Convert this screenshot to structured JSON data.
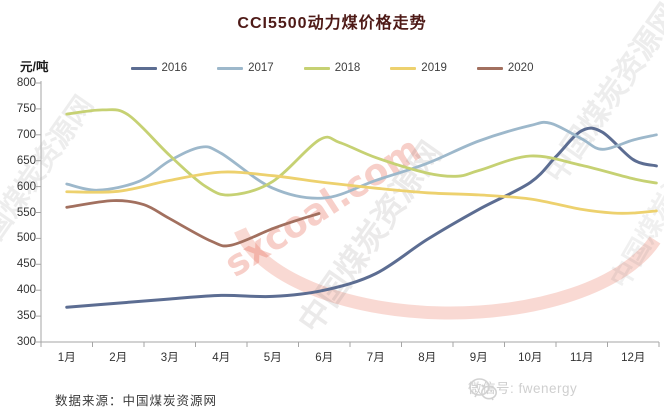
{
  "title": "CCI5500动力煤价格走势",
  "y_axis": {
    "unit": "元/吨",
    "ticks": [
      800,
      750,
      700,
      650,
      600,
      550,
      500,
      450,
      400,
      350,
      300
    ]
  },
  "x_axis": {
    "labels": [
      "1月",
      "2月",
      "3月",
      "4月",
      "5月",
      "6月",
      "7月",
      "8月",
      "9月",
      "10月",
      "11月",
      "12月"
    ]
  },
  "chart_data": {
    "type": "line",
    "title": "CCI5500动力煤价格走势",
    "ylabel": "元/吨",
    "ylim": [
      300,
      800
    ],
    "y_step": 50,
    "x_categories": [
      "1月",
      "2月",
      "3月",
      "4月",
      "5月",
      "6月",
      "7月",
      "8月",
      "9月",
      "10月",
      "11月",
      "12月"
    ],
    "grid": false,
    "legend_position": "top",
    "series": [
      {
        "name": "2016",
        "color": "#5c6d92",
        "width": 3,
        "points": [
          [
            1,
            367
          ],
          [
            2,
            375
          ],
          [
            3,
            383
          ],
          [
            4,
            390
          ],
          [
            5,
            388
          ],
          [
            6,
            400
          ],
          [
            7,
            432
          ],
          [
            8,
            498
          ],
          [
            9,
            556
          ],
          [
            10,
            608
          ],
          [
            10.5,
            658
          ],
          [
            11,
            708
          ],
          [
            11.4,
            705
          ],
          [
            12,
            652
          ],
          [
            12.45,
            640
          ]
        ]
      },
      {
        "name": "2017",
        "color": "#9db8cb",
        "width": 2.8,
        "points": [
          [
            1,
            605
          ],
          [
            1.6,
            593
          ],
          [
            2.4,
            610
          ],
          [
            3,
            650
          ],
          [
            3.6,
            676
          ],
          [
            4,
            664
          ],
          [
            5,
            597
          ],
          [
            6,
            578
          ],
          [
            7,
            612
          ],
          [
            8,
            645
          ],
          [
            9,
            688
          ],
          [
            10,
            718
          ],
          [
            10.4,
            722
          ],
          [
            11,
            692
          ],
          [
            11.4,
            672
          ],
          [
            12,
            690
          ],
          [
            12.45,
            700
          ]
        ]
      },
      {
        "name": "2018",
        "color": "#c6d173",
        "width": 2.8,
        "points": [
          [
            1,
            740
          ],
          [
            1.7,
            748
          ],
          [
            2.2,
            738
          ],
          [
            3,
            660
          ],
          [
            3.7,
            600
          ],
          [
            4.2,
            584
          ],
          [
            5,
            610
          ],
          [
            5.9,
            690
          ],
          [
            6.3,
            685
          ],
          [
            7,
            656
          ],
          [
            8,
            626
          ],
          [
            8.6,
            620
          ],
          [
            9,
            631
          ],
          [
            10,
            659
          ],
          [
            11,
            641
          ],
          [
            12,
            615
          ],
          [
            12.45,
            607
          ]
        ]
      },
      {
        "name": "2019",
        "color": "#edd16e",
        "width": 2.8,
        "points": [
          [
            1,
            590
          ],
          [
            2,
            591
          ],
          [
            3,
            612
          ],
          [
            4,
            628
          ],
          [
            5,
            621
          ],
          [
            6,
            608
          ],
          [
            7,
            597
          ],
          [
            8,
            588
          ],
          [
            9,
            584
          ],
          [
            10,
            576
          ],
          [
            11,
            556
          ],
          [
            11.6,
            549
          ],
          [
            12,
            549
          ],
          [
            12.45,
            553
          ]
        ]
      },
      {
        "name": "2020",
        "color": "#a2705f",
        "width": 2.8,
        "points": [
          [
            1,
            560
          ],
          [
            1.9,
            573
          ],
          [
            2.5,
            565
          ],
          [
            3,
            538
          ],
          [
            3.8,
            495
          ],
          [
            4.2,
            487
          ],
          [
            5,
            519
          ],
          [
            5.5,
            536
          ],
          [
            5.9,
            548
          ]
        ]
      }
    ]
  },
  "footer": {
    "source": "数据来源：中国煤炭资源网",
    "wechat": "微信号: fwenergy"
  },
  "watermarks": {
    "pink_text": "sxcoal.com",
    "gray_text": "中国煤炭资源网",
    "arc_color": "rgba(235,130,110,0.30)"
  }
}
